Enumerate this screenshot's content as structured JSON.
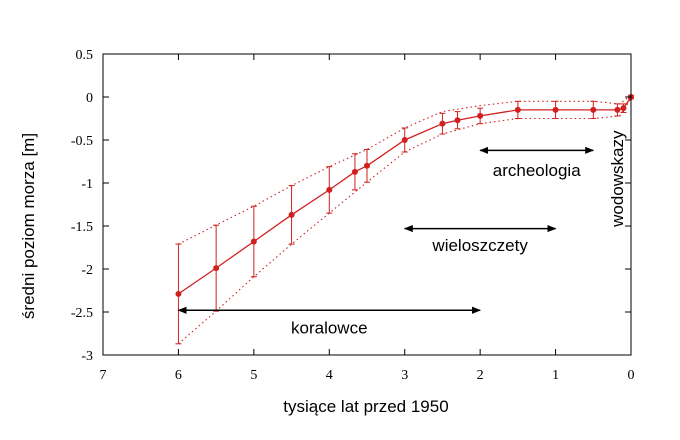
{
  "chart_data": {
    "type": "line",
    "title": "",
    "xlabel": "tysiące lat przed 1950",
    "ylabel": "średni poziom morza [m]",
    "xlim": [
      7,
      0
    ],
    "ylim": [
      -3,
      0.5
    ],
    "x_reversed": true,
    "xticks": [
      7,
      6,
      5,
      4,
      3,
      2,
      1,
      0
    ],
    "xtick_labels": [
      "7",
      "6",
      "5",
      "4",
      "3",
      "2",
      "1",
      "0"
    ],
    "yticks": [
      0.5,
      0,
      -0.5,
      -1,
      -1.5,
      -2,
      -2.5,
      -3
    ],
    "ytick_labels": [
      "0.5",
      "0",
      "-0.5",
      "-1",
      "-1.5",
      "-2",
      "-2.5",
      "-3"
    ],
    "grid": false,
    "colors": {
      "series": "#d22020",
      "axis": "#000000",
      "arrow": "#000000"
    },
    "series": [
      {
        "name": "średni poziom morza",
        "x": [
          6.0,
          5.5,
          5.0,
          4.5,
          4.0,
          3.66,
          3.5,
          3.0,
          2.5,
          2.3,
          2.0,
          1.5,
          1.0,
          0.5,
          0.18,
          0.1,
          0.0
        ],
        "y": [
          -2.29,
          -1.99,
          -1.68,
          -1.37,
          -1.08,
          -0.87,
          -0.8,
          -0.5,
          -0.31,
          -0.27,
          -0.22,
          -0.15,
          -0.15,
          -0.15,
          -0.15,
          -0.13,
          0.0
        ],
        "err": [
          0.58,
          0.5,
          0.41,
          0.34,
          0.27,
          0.21,
          0.19,
          0.14,
          0.12,
          0.1,
          0.09,
          0.1,
          0.1,
          0.1,
          0.07,
          0.05,
          0.02
        ]
      }
    ],
    "envelope": {
      "upper": {
        "x": [
          6.0,
          5.5,
          5.0,
          4.5,
          4.0,
          3.5,
          3.0,
          2.5,
          2.0,
          1.5,
          1.0,
          0.5,
          0.15,
          0.0
        ],
        "y": [
          -1.71,
          -1.49,
          -1.27,
          -1.03,
          -0.81,
          -0.61,
          -0.36,
          -0.17,
          -0.1,
          -0.05,
          -0.05,
          -0.05,
          -0.08,
          0.02
        ]
      },
      "lower": {
        "x": [
          6.0,
          5.5,
          5.0,
          4.5,
          4.0,
          3.5,
          3.0,
          2.5,
          2.0,
          1.5,
          1.0,
          0.5,
          0.15,
          0.0
        ],
        "y": [
          -2.87,
          -2.49,
          -2.09,
          -1.71,
          -1.35,
          -0.99,
          -0.64,
          -0.43,
          -0.31,
          -0.25,
          -0.25,
          -0.25,
          -0.22,
          -0.02
        ]
      }
    },
    "annotations": [
      {
        "text": "koralowce",
        "x_from": 6.0,
        "x_to": 2.0,
        "y_arrow": -2.48,
        "y_text": -2.68
      },
      {
        "text": "wieloszczety",
        "x_from": 3.0,
        "x_to": 1.0,
        "y_arrow": -1.53,
        "y_text": -1.72
      },
      {
        "text": "archeologia",
        "x_from": 2.0,
        "x_to": 0.5,
        "y_arrow": -0.62,
        "y_text": -0.85
      },
      {
        "text": "wodowskazy",
        "x": 0.05,
        "y": -0.95,
        "rotation": -90
      }
    ]
  }
}
